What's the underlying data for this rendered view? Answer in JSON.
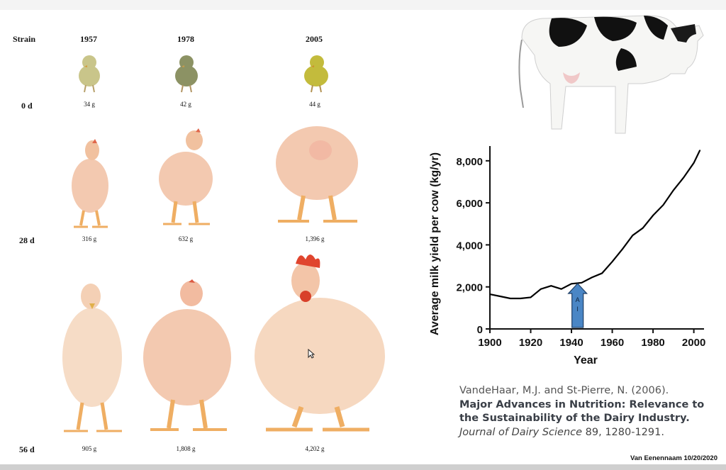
{
  "slide": {
    "strain_header": "Strain",
    "years": [
      "1957",
      "1978",
      "2005"
    ],
    "days": [
      "0 d",
      "28 d",
      "56 d"
    ],
    "weights": {
      "d0": [
        "34 g",
        "42 g",
        "44 g"
      ],
      "d28": [
        "316 g",
        "632 g",
        "1,396 g"
      ],
      "d56": [
        "905 g",
        "1,808 g",
        "4,202 g"
      ]
    },
    "cow_image": "holstein-cow",
    "chick_colors": [
      "#c9c58a",
      "#8c9264",
      "#c3bb3c"
    ],
    "broiler_color": "#f3c9b0"
  },
  "chart_data": {
    "type": "line",
    "title": "",
    "xlabel": "Year",
    "ylabel": "Average milk yield per cow (kg/yr)",
    "xlim": [
      1900,
      2005
    ],
    "ylim": [
      0,
      8500
    ],
    "xticks": [
      1900,
      1920,
      1940,
      1960,
      1980,
      2000
    ],
    "yticks": [
      0,
      2000,
      4000,
      6000,
      8000
    ],
    "ytick_labels": [
      "0",
      "2,000",
      "4,000",
      "6,000",
      "8,000"
    ],
    "grid": false,
    "series": [
      {
        "x": [
          1900,
          1905,
          1910,
          1915,
          1920,
          1925,
          1930,
          1935,
          1940,
          1945,
          1950,
          1955,
          1960,
          1965,
          1970,
          1975,
          1980,
          1985,
          1990,
          1995,
          2000,
          2003
        ],
        "values": [
          1650,
          1550,
          1450,
          1450,
          1500,
          1900,
          2050,
          1900,
          2150,
          2200,
          2450,
          2650,
          3200,
          3800,
          4450,
          4800,
          5400,
          5900,
          6600,
          7200,
          7900,
          8500
        ]
      }
    ],
    "annotation": {
      "label": "AI",
      "x": 1943,
      "arrow_color": "#4a86c5"
    }
  },
  "citation": {
    "authors": "VandeHaar, M.J. and St-Pierre, N. (2006).",
    "title": "Major Advances in Nutrition: Relevance to the Sustainability of the Dairy Industry.",
    "journal": "Journal of Dairy Science",
    "details": " 89, 1280-1291."
  },
  "watermark": "Van Eenennaam 10/20/2020"
}
